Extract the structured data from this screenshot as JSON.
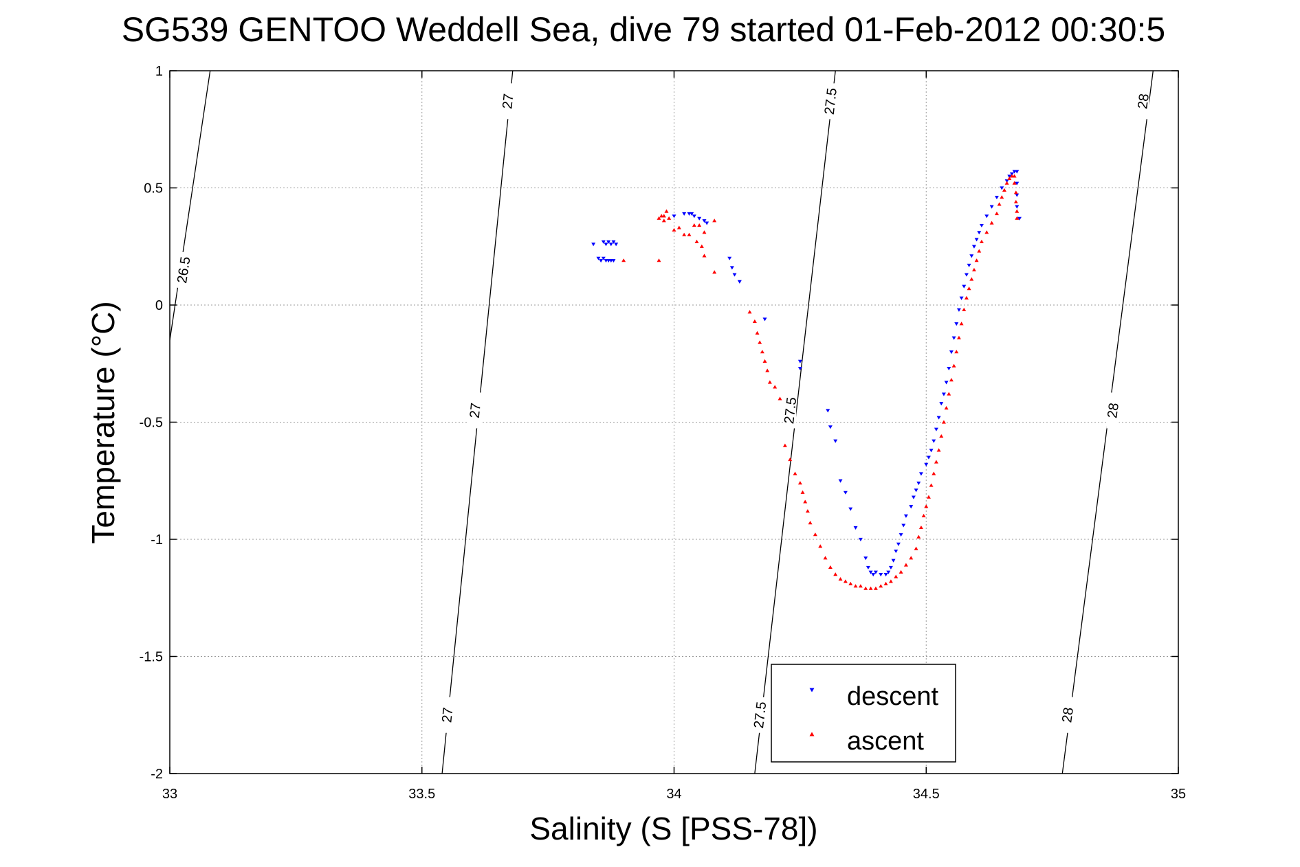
{
  "chart_data": {
    "type": "scatter",
    "title": "SG539 GENTOO Weddell Sea, dive 79 started 01-Feb-2012 00:30:5",
    "xlabel": "Salinity (S [PSS-78])",
    "ylabel": "Temperature (°C)",
    "xlim": [
      33,
      35
    ],
    "ylim": [
      -2,
      1
    ],
    "xticks": [
      "33",
      "33.5",
      "34",
      "34.5",
      "35"
    ],
    "yticks": [
      "1",
      "0.5",
      "0",
      "-0.5",
      "-1",
      "-1.5",
      "-2"
    ],
    "grid": true,
    "legend": {
      "position": "bottom-center",
      "entries": [
        "descent",
        "ascent"
      ]
    },
    "colors": {
      "descent": "#0000ff",
      "ascent": "#ff0000",
      "contour": "#000000",
      "grid": "#999999"
    },
    "density_contours": [
      {
        "label": "26.5",
        "points": [
          [
            33.0,
            -0.15
          ],
          [
            33.08,
            1.0
          ]
        ],
        "label_positions": [
          [
            33.027,
            0.15
          ]
        ]
      },
      {
        "label": "27",
        "points": [
          [
            33.54,
            -2.0
          ],
          [
            33.68,
            1.0
          ]
        ],
        "label_positions": [
          [
            33.55,
            -1.75
          ],
          [
            33.605,
            -0.45
          ],
          [
            33.67,
            0.87
          ]
        ]
      },
      {
        "label": "27.5",
        "points": [
          [
            34.16,
            -2.0
          ],
          [
            34.32,
            1.0
          ]
        ],
        "label_positions": [
          [
            34.17,
            -1.75
          ],
          [
            34.23,
            -0.45
          ],
          [
            34.31,
            0.87
          ]
        ]
      },
      {
        "label": "28",
        "points": [
          [
            34.77,
            -2.0
          ],
          [
            34.95,
            1.0
          ]
        ],
        "label_positions": [
          [
            34.78,
            -1.75
          ],
          [
            34.87,
            -0.45
          ],
          [
            34.93,
            0.87
          ]
        ]
      }
    ],
    "series": [
      {
        "name": "descent",
        "marker": "triangle-down",
        "points": [
          [
            33.84,
            0.26
          ],
          [
            33.85,
            0.2
          ],
          [
            33.855,
            0.19
          ],
          [
            33.86,
            0.2
          ],
          [
            33.865,
            0.19
          ],
          [
            33.87,
            0.19
          ],
          [
            33.875,
            0.19
          ],
          [
            33.88,
            0.19
          ],
          [
            33.86,
            0.27
          ],
          [
            33.865,
            0.26
          ],
          [
            33.87,
            0.27
          ],
          [
            33.875,
            0.26
          ],
          [
            33.88,
            0.27
          ],
          [
            33.885,
            0.26
          ],
          [
            34.0,
            0.38
          ],
          [
            34.02,
            0.39
          ],
          [
            34.03,
            0.39
          ],
          [
            34.035,
            0.39
          ],
          [
            34.04,
            0.38
          ],
          [
            34.05,
            0.37
          ],
          [
            34.06,
            0.36
          ],
          [
            34.065,
            0.35
          ],
          [
            34.11,
            0.2
          ],
          [
            34.115,
            0.16
          ],
          [
            34.12,
            0.13
          ],
          [
            34.13,
            0.1
          ],
          [
            34.18,
            -0.06
          ],
          [
            34.25,
            -0.24
          ],
          [
            34.25,
            -0.27
          ],
          [
            34.305,
            -0.45
          ],
          [
            34.31,
            -0.52
          ],
          [
            34.32,
            -0.58
          ],
          [
            34.33,
            -0.75
          ],
          [
            34.34,
            -0.8
          ],
          [
            34.35,
            -0.87
          ],
          [
            34.36,
            -0.95
          ],
          [
            34.37,
            -1.0
          ],
          [
            34.38,
            -1.08
          ],
          [
            34.385,
            -1.12
          ],
          [
            34.39,
            -1.14
          ],
          [
            34.395,
            -1.15
          ],
          [
            34.4,
            -1.14
          ],
          [
            34.41,
            -1.15
          ],
          [
            34.42,
            -1.15
          ],
          [
            34.425,
            -1.14
          ],
          [
            34.43,
            -1.12
          ],
          [
            34.435,
            -1.09
          ],
          [
            34.44,
            -1.05
          ],
          [
            34.445,
            -1.02
          ],
          [
            34.45,
            -0.98
          ],
          [
            34.455,
            -0.94
          ],
          [
            34.46,
            -0.9
          ],
          [
            34.47,
            -0.86
          ],
          [
            34.475,
            -0.82
          ],
          [
            34.48,
            -0.79
          ],
          [
            34.485,
            -0.76
          ],
          [
            34.49,
            -0.72
          ],
          [
            34.5,
            -0.68
          ],
          [
            34.505,
            -0.65
          ],
          [
            34.51,
            -0.62
          ],
          [
            34.515,
            -0.58
          ],
          [
            34.52,
            -0.53
          ],
          [
            34.525,
            -0.48
          ],
          [
            34.53,
            -0.42
          ],
          [
            34.535,
            -0.38
          ],
          [
            34.54,
            -0.33
          ],
          [
            34.545,
            -0.27
          ],
          [
            34.55,
            -0.2
          ],
          [
            34.555,
            -0.14
          ],
          [
            34.56,
            -0.08
          ],
          [
            34.565,
            -0.02
          ],
          [
            34.57,
            0.03
          ],
          [
            34.575,
            0.08
          ],
          [
            34.58,
            0.13
          ],
          [
            34.585,
            0.17
          ],
          [
            34.59,
            0.21
          ],
          [
            34.595,
            0.25
          ],
          [
            34.6,
            0.28
          ],
          [
            34.605,
            0.31
          ],
          [
            34.61,
            0.34
          ],
          [
            34.62,
            0.38
          ],
          [
            34.63,
            0.42
          ],
          [
            34.64,
            0.46
          ],
          [
            34.65,
            0.5
          ],
          [
            34.66,
            0.53
          ],
          [
            34.665,
            0.55
          ],
          [
            34.67,
            0.56
          ],
          [
            34.675,
            0.57
          ],
          [
            34.68,
            0.57
          ],
          [
            34.68,
            0.52
          ],
          [
            34.68,
            0.47
          ],
          [
            34.68,
            0.42
          ],
          [
            34.685,
            0.37
          ]
        ]
      },
      {
        "name": "ascent",
        "marker": "triangle-up",
        "points": [
          [
            33.9,
            0.19
          ],
          [
            33.97,
            0.19
          ],
          [
            33.97,
            0.37
          ],
          [
            33.975,
            0.38
          ],
          [
            33.98,
            0.38
          ],
          [
            33.985,
            0.4
          ],
          [
            33.99,
            0.37
          ],
          [
            33.98,
            0.36
          ],
          [
            34.0,
            0.32
          ],
          [
            34.01,
            0.33
          ],
          [
            34.02,
            0.3
          ],
          [
            34.03,
            0.3
          ],
          [
            34.04,
            0.34
          ],
          [
            34.05,
            0.34
          ],
          [
            34.06,
            0.31
          ],
          [
            34.045,
            0.27
          ],
          [
            34.055,
            0.25
          ],
          [
            34.06,
            0.21
          ],
          [
            34.08,
            0.14
          ],
          [
            34.08,
            0.36
          ],
          [
            34.15,
            -0.03
          ],
          [
            34.16,
            -0.07
          ],
          [
            34.165,
            -0.12
          ],
          [
            34.17,
            -0.16
          ],
          [
            34.175,
            -0.2
          ],
          [
            34.18,
            -0.24
          ],
          [
            34.185,
            -0.28
          ],
          [
            34.19,
            -0.33
          ],
          [
            34.2,
            -0.35
          ],
          [
            34.21,
            -0.4
          ],
          [
            34.22,
            -0.6
          ],
          [
            34.23,
            -0.66
          ],
          [
            34.24,
            -0.72
          ],
          [
            34.25,
            -0.76
          ],
          [
            34.255,
            -0.8
          ],
          [
            34.26,
            -0.84
          ],
          [
            34.265,
            -0.88
          ],
          [
            34.27,
            -0.93
          ],
          [
            34.28,
            -0.98
          ],
          [
            34.29,
            -1.03
          ],
          [
            34.3,
            -1.08
          ],
          [
            34.31,
            -1.12
          ],
          [
            34.32,
            -1.15
          ],
          [
            34.33,
            -1.17
          ],
          [
            34.34,
            -1.18
          ],
          [
            34.35,
            -1.19
          ],
          [
            34.36,
            -1.2
          ],
          [
            34.37,
            -1.2
          ],
          [
            34.38,
            -1.21
          ],
          [
            34.39,
            -1.21
          ],
          [
            34.4,
            -1.21
          ],
          [
            34.41,
            -1.2
          ],
          [
            34.42,
            -1.19
          ],
          [
            34.43,
            -1.18
          ],
          [
            34.44,
            -1.16
          ],
          [
            34.45,
            -1.14
          ],
          [
            34.46,
            -1.11
          ],
          [
            34.47,
            -1.08
          ],
          [
            34.48,
            -1.04
          ],
          [
            34.485,
            -0.99
          ],
          [
            34.49,
            -0.95
          ],
          [
            34.495,
            -0.9
          ],
          [
            34.5,
            -0.86
          ],
          [
            34.505,
            -0.82
          ],
          [
            34.51,
            -0.77
          ],
          [
            34.515,
            -0.72
          ],
          [
            34.52,
            -0.67
          ],
          [
            34.525,
            -0.62
          ],
          [
            34.53,
            -0.56
          ],
          [
            34.535,
            -0.5
          ],
          [
            34.54,
            -0.44
          ],
          [
            34.545,
            -0.38
          ],
          [
            34.55,
            -0.32
          ],
          [
            34.555,
            -0.26
          ],
          [
            34.56,
            -0.2
          ],
          [
            34.565,
            -0.14
          ],
          [
            34.57,
            -0.08
          ],
          [
            34.575,
            -0.02
          ],
          [
            34.58,
            0.03
          ],
          [
            34.585,
            0.07
          ],
          [
            34.59,
            0.11
          ],
          [
            34.595,
            0.15
          ],
          [
            34.6,
            0.19
          ],
          [
            34.605,
            0.23
          ],
          [
            34.61,
            0.27
          ],
          [
            34.62,
            0.31
          ],
          [
            34.63,
            0.35
          ],
          [
            34.64,
            0.39
          ],
          [
            34.645,
            0.43
          ],
          [
            34.65,
            0.46
          ],
          [
            34.655,
            0.49
          ],
          [
            34.66,
            0.52
          ],
          [
            34.665,
            0.54
          ],
          [
            34.67,
            0.55
          ],
          [
            34.675,
            0.55
          ],
          [
            34.675,
            0.52
          ],
          [
            34.678,
            0.48
          ],
          [
            34.678,
            0.44
          ],
          [
            34.68,
            0.4
          ],
          [
            34.68,
            0.37
          ]
        ]
      }
    ]
  }
}
